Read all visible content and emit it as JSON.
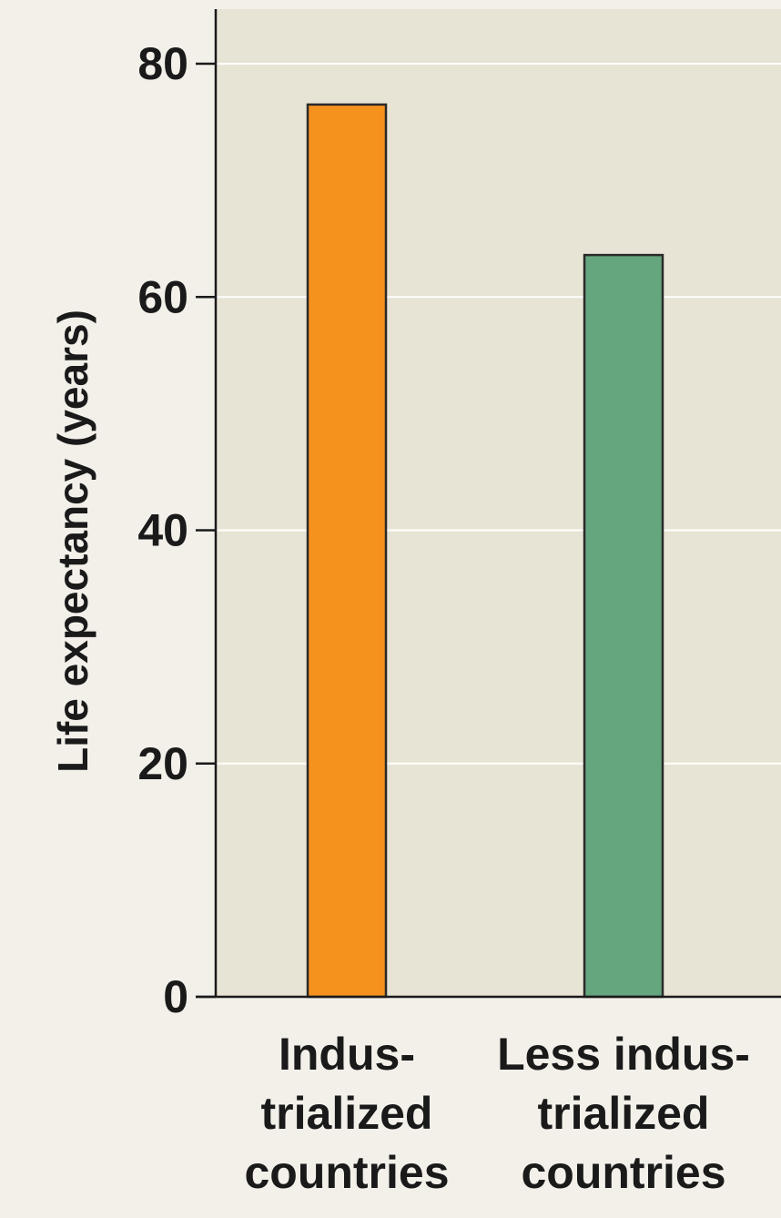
{
  "chart_data": {
    "type": "bar",
    "title": "",
    "xlabel": "",
    "ylabel": "Life expectancy (years)",
    "ylim": [
      0,
      80
    ],
    "yticks": [
      "0",
      "20",
      "40",
      "60",
      "80"
    ],
    "grid": true,
    "categories": [
      [
        "Indus-",
        "trialized",
        "countries"
      ],
      [
        "Less indus-",
        "trialized",
        "countries"
      ]
    ],
    "values": [
      76.5,
      63.6
    ],
    "colors": [
      "#f5921e",
      "#65a67e"
    ],
    "background": "#e8e4d5",
    "page_background": "#f3f0ea"
  }
}
